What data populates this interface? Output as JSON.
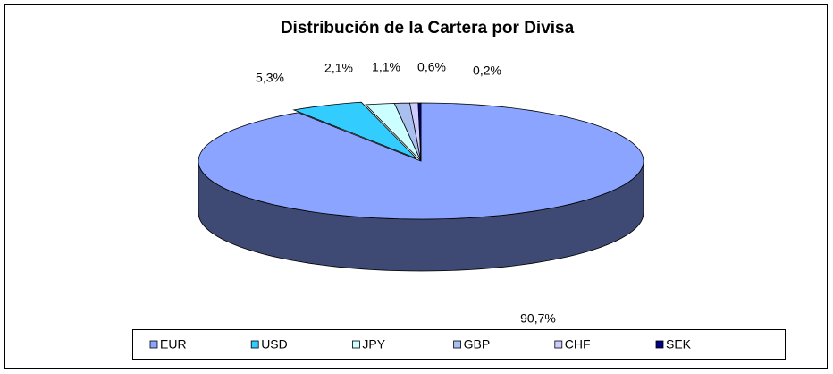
{
  "chart_data": {
    "type": "pie3d",
    "title": "Distribución de la Cartera por Divisa",
    "categories": [
      "EUR",
      "USD",
      "JPY",
      "GBP",
      "CHF",
      "SEK"
    ],
    "values": [
      90.7,
      5.3,
      2.1,
      1.1,
      0.6,
      0.2
    ],
    "value_labels": [
      "90,7%",
      "5,3%",
      "2,1%",
      "1,1%",
      "0,6%",
      "0,2%"
    ],
    "colors": [
      "#8aa4ff",
      "#33ccff",
      "#ccffff",
      "#a8bff0",
      "#ccccff",
      "#000080"
    ],
    "legend": "bottom"
  }
}
